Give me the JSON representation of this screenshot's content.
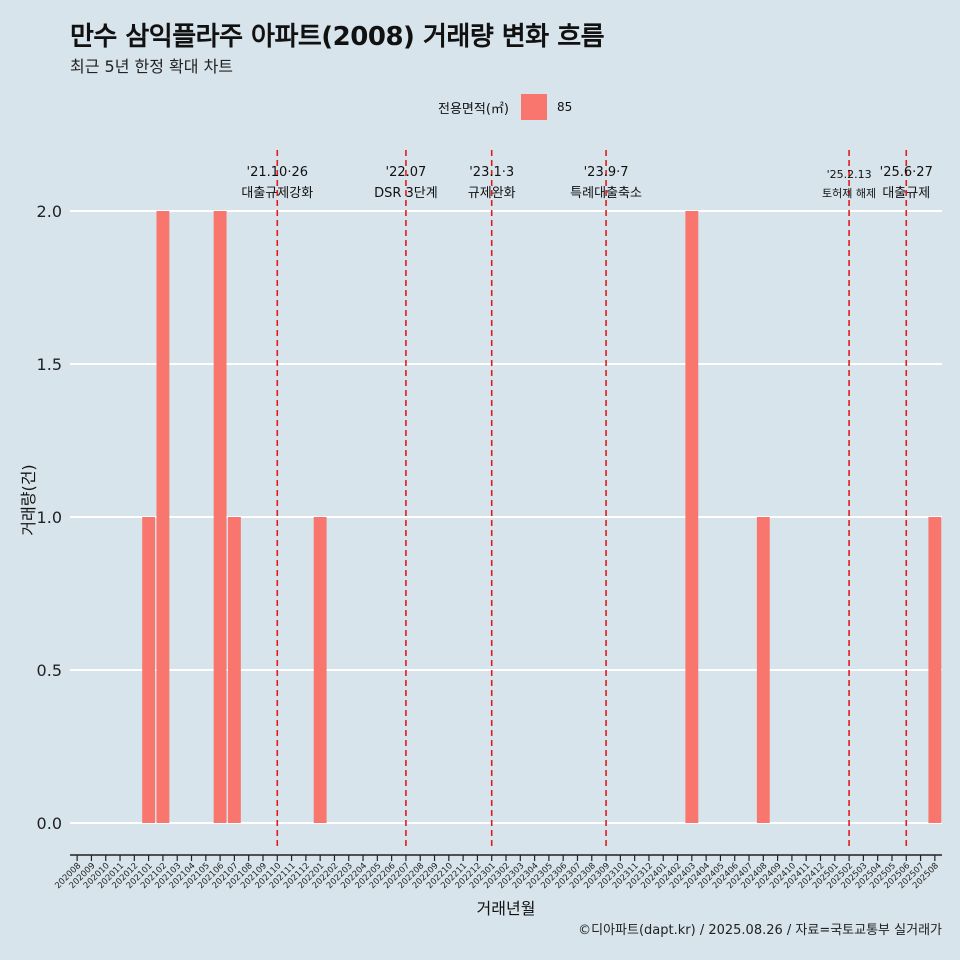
{
  "header": {
    "title": "만수 삼익플라주 아파트(2008) 거래량 변화 흐름",
    "subtitle": "최근 5년 한정 확대 차트"
  },
  "legend": {
    "title": "전용면적(㎡)",
    "items": [
      {
        "label": "85",
        "color": "#f8766d"
      }
    ]
  },
  "caption": "©디아파트(dapt.kr) / 2025.08.26 / 자료=국토교통부 실거래가",
  "colors": {
    "background": "#d7e4eb",
    "bar": "#f8766d",
    "event_line": "#e41a1c",
    "grid": "#ffffff"
  },
  "chart_data": {
    "type": "bar",
    "xlabel": "거래년월",
    "ylabel": "거래량(건)",
    "ylim": [
      0,
      2
    ],
    "yticks": [
      "0.0",
      "0.5",
      "1.0",
      "1.5",
      "2.0"
    ],
    "ytick_values": [
      0,
      0.5,
      1,
      1.5,
      2
    ],
    "grid": true,
    "legend_position": "top",
    "categories": [
      "202008",
      "202009",
      "202010",
      "202011",
      "202012",
      "202101",
      "202102",
      "202103",
      "202104",
      "202105",
      "202106",
      "202107",
      "202108",
      "202109",
      "202110",
      "202111",
      "202112",
      "202201",
      "202202",
      "202203",
      "202204",
      "202205",
      "202206",
      "202207",
      "202208",
      "202209",
      "202210",
      "202211",
      "202212",
      "202301",
      "202302",
      "202303",
      "202304",
      "202305",
      "202306",
      "202307",
      "202308",
      "202309",
      "202310",
      "202311",
      "202312",
      "202401",
      "202402",
      "202403",
      "202404",
      "202405",
      "202406",
      "202407",
      "202408",
      "202409",
      "202410",
      "202411",
      "202412",
      "202501",
      "202502",
      "202503",
      "202504",
      "202505",
      "202506",
      "202507",
      "202508"
    ],
    "series": [
      {
        "name": "85",
        "values": [
          0,
          0,
          0,
          0,
          0,
          1,
          2,
          0,
          0,
          0,
          2,
          1,
          0,
          0,
          0,
          0,
          0,
          1,
          0,
          0,
          0,
          0,
          0,
          0,
          0,
          0,
          0,
          0,
          0,
          0,
          0,
          0,
          0,
          0,
          0,
          0,
          0,
          0,
          0,
          0,
          0,
          0,
          0,
          2,
          0,
          0,
          0,
          0,
          1,
          0,
          0,
          0,
          0,
          0,
          0,
          0,
          0,
          0,
          0,
          0,
          1
        ]
      }
    ],
    "annotations": [
      {
        "at": "202110",
        "date": "'21.10·26",
        "text": "대출규제강화"
      },
      {
        "at": "202207",
        "date": "'22.07",
        "text": "DSR 3단계"
      },
      {
        "at": "202301",
        "date": "'23.1·3",
        "text": "규제완화"
      },
      {
        "at": "202309",
        "date": "'23.9·7",
        "text": "특례대출축소"
      },
      {
        "at": "202502",
        "date": "'25.2.13",
        "text": "토허제 해제"
      },
      {
        "at": "202506",
        "date": "'25.6·27",
        "text": "대출규제"
      }
    ]
  }
}
